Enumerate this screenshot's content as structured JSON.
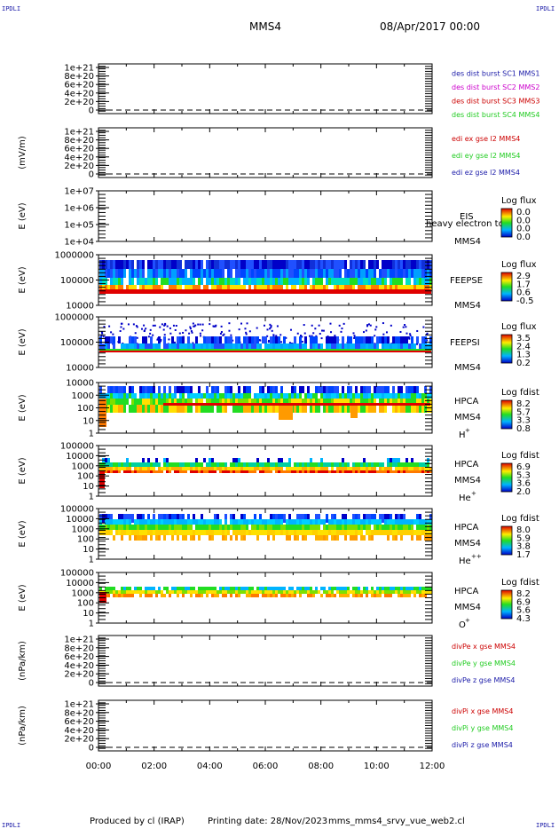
{
  "header": {
    "corner_tl": "IPDLI",
    "corner_tr": "IPDLI",
    "corner_bl": "IPDLI",
    "corner_br": "IPDLI",
    "spacecraft": "MMS4",
    "date": "08/Apr/2017 00:00"
  },
  "footer": {
    "produced": "Produced by cl (IRAP)",
    "printing": "Printing date: 28/Nov/2023",
    "file": "mms_mms4_srvy_vue_web2.cl"
  },
  "time_axis": [
    "00:00",
    "02:00",
    "04:00",
    "06:00",
    "08:00",
    "10:00",
    "12:00"
  ],
  "colors": {
    "red": "#cc0000",
    "green": "#22cc22",
    "blue": "#1a1aa8",
    "magenta": "#cc00cc"
  },
  "chart_data": [
    {
      "type": "line",
      "id": "p1",
      "ylabel": "",
      "yticks": [
        "1e+21",
        "8e+20",
        "6e+20",
        "4e+20",
        "2e+20",
        "0"
      ],
      "legend": [
        {
          "text": "des dist burst SC1 MMS1",
          "color": "#1a1aa8"
        },
        {
          "text": "des dist burst SC2 MMS2",
          "color": "#cc00cc"
        },
        {
          "text": "des dist burst SC3 MMS3",
          "color": "#cc0000"
        },
        {
          "text": "des dist burst SC4 MMS4",
          "color": "#22cc22"
        }
      ],
      "series": []
    },
    {
      "type": "line",
      "id": "p2",
      "ylabel": "(mV/m)",
      "yticks": [
        "1e+21",
        "8e+20",
        "6e+20",
        "4e+20",
        "2e+20",
        "0"
      ],
      "legend": [
        {
          "text": "edi ex gse l2 MMS4",
          "color": "#cc0000"
        },
        {
          "text": "edi ey gse l2 MMS4",
          "color": "#22cc22"
        },
        {
          "text": "edi ez gse l2 MMS4",
          "color": "#1a1aa8"
        }
      ],
      "series": []
    },
    {
      "type": "heatmap",
      "id": "p3",
      "ylabel": "E (eV)",
      "yticks": [
        "1e+07",
        "1e+06",
        "1e+05",
        "1e+04"
      ],
      "side_labels": [
        "EIS",
        "heavy electron tof",
        "MMS4"
      ],
      "colorbar": {
        "title": "Log flux",
        "ticks": [
          "0.0",
          "0.0",
          "0.0",
          "0.0"
        ]
      }
    },
    {
      "type": "heatmap",
      "id": "p4",
      "ylabel": "E (eV)",
      "yticks": [
        "1000000",
        "100000",
        "10000"
      ],
      "side_labels": [
        "FEEPSE",
        "MMS4"
      ],
      "colorbar": {
        "title": "Log flux",
        "ticks": [
          "2.9",
          "1.7",
          "0.6",
          "-0.5"
        ]
      }
    },
    {
      "type": "heatmap",
      "id": "p5",
      "ylabel": "E (eV)",
      "yticks": [
        "1000000",
        "100000",
        "10000"
      ],
      "side_labels": [
        "FEEPSI",
        "MMS4"
      ],
      "colorbar": {
        "title": "Log flux",
        "ticks": [
          "3.5",
          "2.4",
          "1.3",
          "0.2"
        ]
      }
    },
    {
      "type": "heatmap",
      "id": "p6",
      "ylabel": "E (eV)",
      "yticks": [
        "10000",
        "1000",
        "100",
        "10",
        "1"
      ],
      "side_labels": [
        "HPCA",
        "MMS4",
        "H",
        "+"
      ],
      "colorbar": {
        "title": "Log fdist",
        "ticks": [
          "8.2",
          "5.7",
          "3.3",
          "0.8"
        ]
      }
    },
    {
      "type": "heatmap",
      "id": "p7",
      "ylabel": "E (eV)",
      "yticks": [
        "100000",
        "10000",
        "1000",
        "100",
        "10",
        "1"
      ],
      "side_labels": [
        "HPCA",
        "MMS4",
        "He",
        "+"
      ],
      "colorbar": {
        "title": "Log fdist",
        "ticks": [
          "6.9",
          "5.3",
          "3.6",
          "2.0"
        ]
      }
    },
    {
      "type": "heatmap",
      "id": "p8",
      "ylabel": "E (eV)",
      "yticks": [
        "100000",
        "10000",
        "1000",
        "100",
        "10",
        "1"
      ],
      "side_labels": [
        "HPCA",
        "MMS4",
        "He",
        "++"
      ],
      "colorbar": {
        "title": "Log fdist",
        "ticks": [
          "8.0",
          "5.9",
          "3.8",
          "1.7"
        ]
      }
    },
    {
      "type": "heatmap",
      "id": "p9",
      "ylabel": "E (eV)",
      "yticks": [
        "100000",
        "10000",
        "1000",
        "100",
        "10",
        "1"
      ],
      "side_labels": [
        "HPCA",
        "MMS4",
        "O",
        "+"
      ],
      "colorbar": {
        "title": "Log fdist",
        "ticks": [
          "8.2",
          "6.9",
          "5.6",
          "4.3"
        ]
      }
    },
    {
      "type": "line",
      "id": "p10",
      "ylabel": "(nPa/km)",
      "yticks": [
        "1e+21",
        "8e+20",
        "6e+20",
        "4e+20",
        "2e+20",
        "0"
      ],
      "legend": [
        {
          "text": "divPe x gse MMS4",
          "color": "#cc0000"
        },
        {
          "text": "divPe y gse MMS4",
          "color": "#22cc22"
        },
        {
          "text": "divPe z gse MMS4",
          "color": "#1a1aa8"
        }
      ],
      "series": []
    },
    {
      "type": "line",
      "id": "p11",
      "ylabel": "(nPa/km)",
      "yticks": [
        "1e+21",
        "8e+20",
        "6e+20",
        "4e+20",
        "2e+20",
        "0"
      ],
      "legend": [
        {
          "text": "divPi x gse MMS4",
          "color": "#cc0000"
        },
        {
          "text": "divPi y gse MMS4",
          "color": "#22cc22"
        },
        {
          "text": "divPi z gse MMS4",
          "color": "#1a1aa8"
        }
      ],
      "series": []
    }
  ]
}
